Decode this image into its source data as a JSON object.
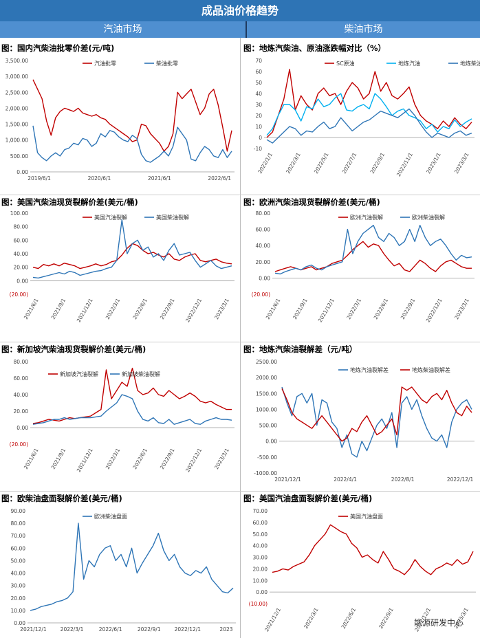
{
  "header": {
    "title": "成品油价格趋势"
  },
  "sections": {
    "left": "汽油市场",
    "right": "柴油市场"
  },
  "watermark": "能源研发中心",
  "charts": [
    {
      "title": "图：国内汽柴油批零价差(元/吨)",
      "chart_data": {
        "type": "line",
        "title": "图：国内汽柴油批零价差(元/吨)",
        "yticks": [
          "3,500.00",
          "3,000.00",
          "2,500.00",
          "2,000.00",
          "1,500.00",
          "1,000.00",
          "500.00",
          "0.00"
        ],
        "ylim": [
          0,
          3500
        ],
        "xticks": [
          "2019/6/1",
          "2020/6/1",
          "2021/6/1",
          "2022/6/1"
        ],
        "series": [
          {
            "name": "汽油批零",
            "color": "#c00000",
            "values": [
              2900,
              2600,
              2300,
              1600,
              1150,
              1700,
              1900,
              2000,
              1950,
              1900,
              2000,
              1850,
              1800,
              1750,
              1800,
              1700,
              1650,
              1500,
              1400,
              1300,
              1200,
              1100,
              950,
              1000,
              1500,
              1450,
              1200,
              1050,
              900,
              650,
              800,
              1200,
              2500,
              2300,
              2450,
              2600,
              2200,
              1800,
              2000,
              2450,
              2600,
              2100,
              1400,
              650,
              1300
            ]
          },
          {
            "name": "柴油批零",
            "color": "#2e75b6",
            "values": [
              1450,
              600,
              450,
              350,
              500,
              600,
              500,
              700,
              750,
              900,
              850,
              1050,
              1000,
              800,
              900,
              1200,
              1100,
              1300,
              1250,
              1100,
              1000,
              950,
              1150,
              1050,
              550,
              350,
              300,
              400,
              500,
              650,
              500,
              800,
              1400,
              1200,
              1000,
              400,
              350,
              600,
              800,
              700,
              500,
              450,
              700,
              450,
              650
            ]
          }
        ]
      }
    },
    {
      "title": "图：地炼汽柴油、原油涨跌幅对比（%）",
      "chart_data": {
        "type": "line",
        "title": "图：地炼汽柴油、原油涨跌幅对比（%）",
        "yticks": [
          "70",
          "60",
          "50",
          "40",
          "30",
          "20",
          "10",
          "0",
          "-10"
        ],
        "ylim": [
          -10,
          70
        ],
        "xticks": [
          "2022/1/1",
          "2022/3/1",
          "2022/5/1",
          "2022/7/1",
          "2022/9/1",
          "2022/11/1",
          "2023/1/1",
          "2023/3/1"
        ],
        "series": [
          {
            "name": "SC原油",
            "color": "#c00000",
            "values": [
              0,
              5,
              20,
              35,
              62,
              25,
              38,
              30,
              25,
              40,
              45,
              38,
              40,
              30,
              42,
              50,
              45,
              35,
              40,
              60,
              42,
              50,
              38,
              35,
              40,
              46,
              30,
              20,
              15,
              12,
              8,
              15,
              10,
              18,
              12,
              8,
              14
            ]
          },
          {
            "name": "地炼汽油",
            "color": "#00b0f0",
            "values": [
              2,
              8,
              20,
              30,
              30,
              25,
              15,
              28,
              26,
              35,
              28,
              30,
              36,
              40,
              25,
              24,
              28,
              30,
              26,
              40,
              35,
              28,
              20,
              24,
              26,
              20,
              18,
              15,
              8,
              12,
              5,
              10,
              8,
              16,
              10,
              14,
              17
            ]
          },
          {
            "name": "地炼柴油",
            "color": "#2e75b6",
            "values": [
              -2,
              -5,
              0,
              5,
              10,
              8,
              2,
              6,
              5,
              10,
              14,
              8,
              10,
              18,
              12,
              6,
              10,
              14,
              16,
              20,
              24,
              22,
              20,
              18,
              22,
              26,
              20,
              12,
              5,
              0,
              4,
              2,
              0,
              4,
              6,
              2,
              4
            ]
          }
        ]
      }
    },
    {
      "title": "图：美国汽柴油现货裂解价差(美元/桶)",
      "chart_data": {
        "type": "line",
        "title": "图：美国汽柴油现货裂解价差(美元/桶)",
        "yticks": [
          "100.00",
          "80.00",
          "60.00",
          "40.00",
          "20.00",
          "0.00",
          "(20.00)"
        ],
        "ylim": [
          -20,
          100
        ],
        "xticks": [
          "2021/6/1",
          "2021/9/1",
          "2021/12/1",
          "2022/3/1",
          "2022/6/1",
          "2022/9/1",
          "2022/12/1",
          "2023/3/1"
        ],
        "series": [
          {
            "name": "美国汽油裂解",
            "color": "#c00000",
            "values": [
              20,
              18,
              24,
              22,
              25,
              22,
              26,
              24,
              22,
              18,
              20,
              22,
              25,
              22,
              24,
              28,
              30,
              38,
              48,
              55,
              52,
              45,
              40,
              42,
              38,
              35,
              40,
              32,
              30,
              35,
              38,
              40,
              30,
              28,
              30,
              32,
              28,
              26,
              25
            ]
          },
          {
            "name": "美国柴油裂解",
            "color": "#2e75b6",
            "values": [
              5,
              4,
              6,
              8,
              10,
              12,
              10,
              14,
              12,
              8,
              10,
              12,
              14,
              15,
              18,
              20,
              30,
              90,
              40,
              55,
              60,
              45,
              50,
              35,
              40,
              30,
              45,
              55,
              38,
              40,
              42,
              30,
              20,
              25,
              30,
              22,
              18,
              20,
              22
            ]
          }
        ]
      }
    },
    {
      "title": "图：欧洲汽柴油现货裂解价差(美元/桶)",
      "chart_data": {
        "type": "line",
        "title": "图：欧洲汽柴油现货裂解价差(美元/桶)",
        "yticks": [
          "80.00",
          "60.00",
          "40.00",
          "20.00",
          "0.00",
          "(20.00)"
        ],
        "ylim": [
          -20,
          80
        ],
        "xticks": [
          "2021/6/1",
          "2021/9/1",
          "2021/12/1",
          "2022/3/1",
          "2022/6/1",
          "2022/9/1",
          "2022/12/1",
          "2023/3/1"
        ],
        "series": [
          {
            "name": "欧洲汽油裂解",
            "color": "#c00000",
            "values": [
              8,
              10,
              12,
              14,
              12,
              10,
              12,
              14,
              10,
              12,
              14,
              18,
              20,
              22,
              28,
              35,
              40,
              45,
              38,
              42,
              40,
              30,
              22,
              15,
              18,
              10,
              8,
              15,
              22,
              18,
              12,
              8,
              15,
              20,
              22,
              18,
              14,
              12,
              12
            ]
          },
          {
            "name": "欧洲柴油裂解",
            "color": "#2e75b6",
            "values": [
              6,
              5,
              8,
              10,
              12,
              10,
              14,
              16,
              12,
              10,
              14,
              16,
              18,
              20,
              60,
              30,
              45,
              55,
              60,
              65,
              50,
              45,
              55,
              50,
              40,
              45,
              60,
              45,
              65,
              50,
              40,
              45,
              48,
              40,
              30,
              22,
              28,
              25,
              26
            ]
          }
        ]
      }
    },
    {
      "title": "图：新加坡汽柴油现货裂解价差(美元/桶)",
      "chart_data": {
        "type": "line",
        "title": "图：新加坡汽柴油现货裂解价差(美元/桶)",
        "yticks": [
          "80.00",
          "60.00",
          "40.00",
          "20.00",
          "0.00",
          "(20.00)"
        ],
        "ylim": [
          -20,
          80
        ],
        "xticks": [
          "2021/6/1",
          "2021/9/1",
          "2021/12/1",
          "2022/3/1",
          "2022/6/1",
          "2022/9/1",
          "2022/12/1",
          "2023/3/1"
        ],
        "series": [
          {
            "name": "新加坡汽油裂解",
            "color": "#c00000",
            "values": [
              5,
              6,
              8,
              10,
              9,
              8,
              10,
              12,
              11,
              12,
              13,
              14,
              18,
              22,
              70,
              35,
              45,
              55,
              50,
              72,
              45,
              40,
              42,
              48,
              40,
              38,
              45,
              40,
              35,
              38,
              42,
              38,
              32,
              30,
              32,
              28,
              25,
              22,
              22
            ]
          },
          {
            "name": "新加坡柴油裂解",
            "color": "#2e75b6",
            "values": [
              4,
              5,
              6,
              8,
              10,
              10,
              12,
              10,
              11,
              12,
              12,
              12,
              13,
              14,
              20,
              25,
              30,
              40,
              38,
              35,
              20,
              10,
              8,
              12,
              6,
              5,
              10,
              4,
              6,
              8,
              10,
              5,
              4,
              8,
              10,
              12,
              10,
              10,
              9
            ]
          }
        ]
      }
    },
    {
      "title": "图：地炼汽柴油裂解差（元/吨）",
      "chart_data": {
        "type": "line",
        "title": "图：地炼汽柴油裂解差（元/吨）",
        "yticks": [
          "2500.00",
          "2000.00",
          "1500.00",
          "1000.00",
          "500.00",
          "0.00",
          "-500.00",
          "-1000.00"
        ],
        "ylim": [
          -1000,
          2500
        ],
        "xticks": [
          "2021/12/1",
          "2022/4/1",
          "2022/8/1",
          "2022/12/1"
        ],
        "series": [
          {
            "name": "地炼汽油裂解差",
            "color": "#2e75b6",
            "values": [
              1700,
              1200,
              800,
              1400,
              1500,
              1200,
              1500,
              500,
              1300,
              1200,
              600,
              400,
              -200,
              200,
              -400,
              -500,
              0,
              -300,
              100,
              500,
              700,
              400,
              900,
              -200,
              1200,
              1400,
              1000,
              1300,
              800,
              400,
              100,
              0,
              200,
              -200,
              600,
              1000,
              1200,
              1300,
              1000
            ]
          },
          {
            "name": "地炼柴油裂解差",
            "color": "#c00000",
            "values": [
              1650,
              1300,
              900,
              700,
              600,
              500,
              400,
              600,
              800,
              600,
              400,
              200,
              0,
              100,
              400,
              300,
              600,
              800,
              500,
              200,
              300,
              500,
              700,
              200,
              1700,
              1600,
              1700,
              1500,
              1300,
              1200,
              1400,
              1500,
              1300,
              1600,
              1200,
              900,
              800,
              1100,
              900
            ]
          }
        ]
      }
    },
    {
      "title": "图：欧柴油盘面裂解价差(美元/桶)",
      "chart_data": {
        "type": "line",
        "title": "图：欧柴油盘面裂解价差(美元/桶)",
        "yticks": [
          "90.00",
          "80.00",
          "70.00",
          "60.00",
          "50.00",
          "40.00",
          "30.00",
          "20.00",
          "10.00",
          "0.00"
        ],
        "ylim": [
          0,
          90
        ],
        "xticks": [
          "2021/12/1",
          "2022/3/1",
          "2022/6/1",
          "2022/9/1",
          "2022/12/1",
          "2023"
        ],
        "series": [
          {
            "name": "欧洲柴油盘面",
            "color": "#2e75b6",
            "values": [
              10,
              11,
              13,
              14,
              15,
              17,
              18,
              20,
              25,
              80,
              35,
              50,
              45,
              55,
              60,
              62,
              50,
              55,
              45,
              60,
              40,
              48,
              55,
              62,
              72,
              58,
              50,
              55,
              45,
              40,
              38,
              42,
              40,
              45,
              35,
              30,
              25,
              24,
              28
            ]
          }
        ]
      }
    },
    {
      "title": "图：美国汽油盘面裂解价差(美元/桶)",
      "chart_data": {
        "type": "line",
        "title": "图：美国汽油盘面裂解价差(美元/桶)",
        "yticks": [
          "70.00",
          "60.00",
          "50.00",
          "40.00",
          "30.00",
          "20.00",
          "10.00",
          "0.00",
          "(10.00)"
        ],
        "ylim": [
          -10,
          70
        ],
        "xticks": [
          "2021/12/1",
          "2022/3/1",
          "2022/6/1",
          "2022/9/1",
          "2022/12/1",
          "2023/3/1"
        ],
        "series": [
          {
            "name": "美国汽油盘面",
            "color": "#c00000",
            "values": [
              17,
              18,
              20,
              19,
              22,
              24,
              26,
              32,
              40,
              45,
              50,
              58,
              55,
              52,
              50,
              42,
              38,
              30,
              32,
              28,
              25,
              35,
              28,
              20,
              18,
              15,
              20,
              28,
              22,
              18,
              15,
              20,
              22,
              25,
              23,
              28,
              24,
              26,
              35
            ]
          }
        ]
      }
    }
  ]
}
